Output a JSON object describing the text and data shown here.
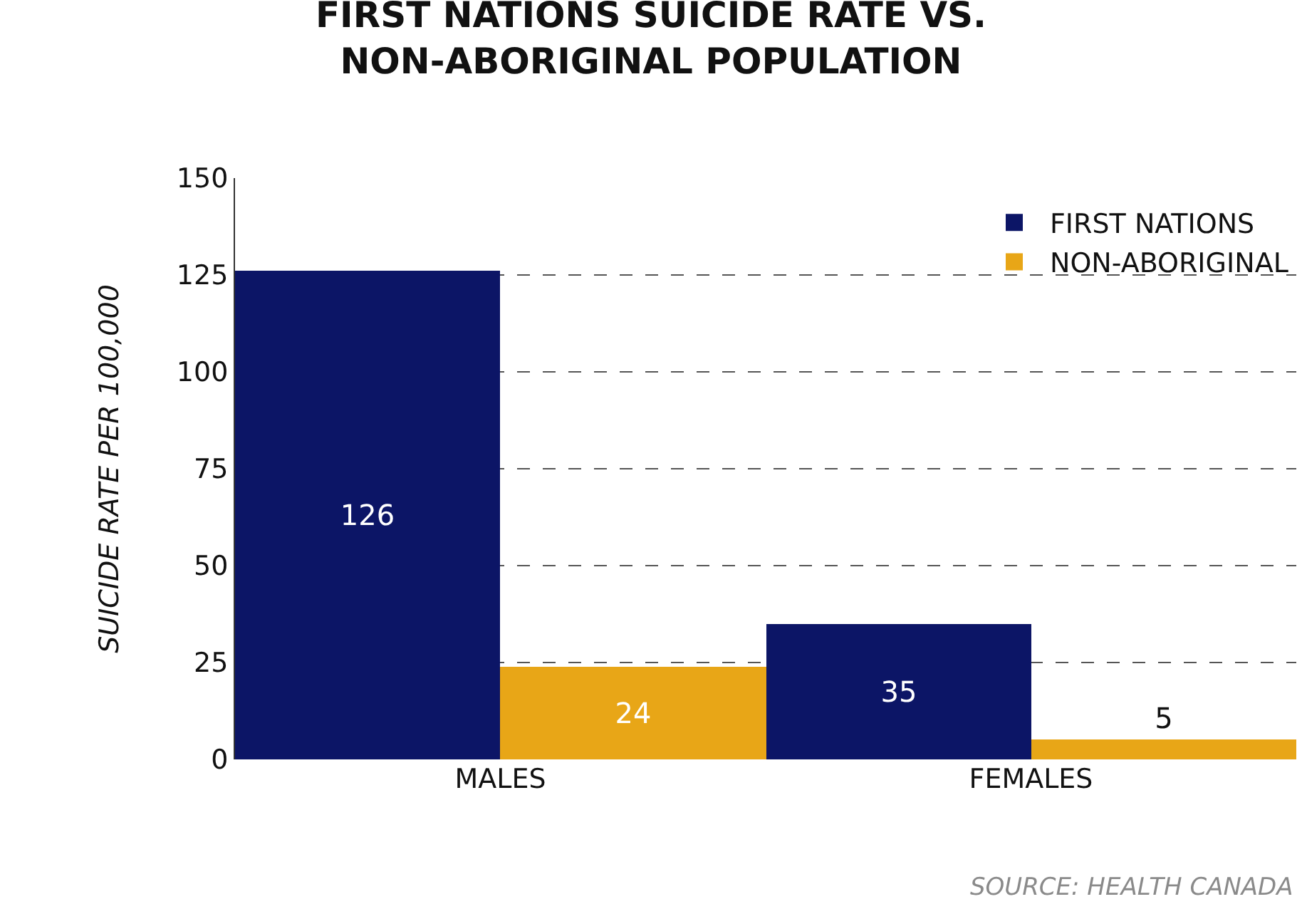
{
  "chart_data": {
    "type": "bar",
    "title": "FIRST NATIONS SUICIDE RATE VS.\nNON-ABORIGINAL POPULATION",
    "ylabel": "SUICIDE RATE PER 100,000",
    "categories": [
      "MALES",
      "FEMALES"
    ],
    "series": [
      {
        "name": "FIRST NATIONS",
        "color": "#0c1566",
        "values": [
          126,
          35
        ]
      },
      {
        "name": "NON-ABORIGINAL",
        "color": "#e8a617",
        "values": [
          24,
          5
        ]
      }
    ],
    "ylim": [
      0,
      150
    ],
    "yticks": [
      0,
      25,
      50,
      75,
      100,
      125,
      150
    ],
    "grid": "y",
    "legend": "top right",
    "data_labels": true,
    "annotations": [
      "SOURCE: HEALTH CANADA"
    ]
  }
}
